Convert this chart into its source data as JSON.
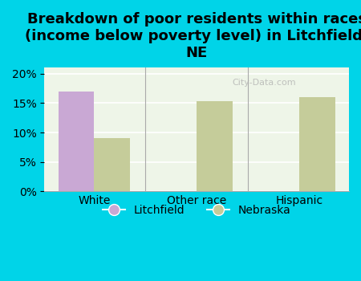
{
  "title": "Breakdown of poor residents within races\n(income below poverty level) in Litchfield,\nNE",
  "categories": [
    "White",
    "Other race",
    "Hispanic"
  ],
  "litchfield_values": [
    17.0,
    0.0,
    0.0
  ],
  "nebraska_values": [
    9.0,
    15.3,
    16.0
  ],
  "litchfield_color": "#c9a8d4",
  "nebraska_color": "#c5cc9a",
  "background_color": "#00d4e8",
  "plot_bg_color": "#eef5e8",
  "bar_width": 0.35,
  "ylim": [
    0,
    21
  ],
  "yticks": [
    0,
    5,
    10,
    15,
    20
  ],
  "title_fontsize": 13,
  "tick_fontsize": 10,
  "legend_fontsize": 10,
  "watermark": "City-Data.com"
}
